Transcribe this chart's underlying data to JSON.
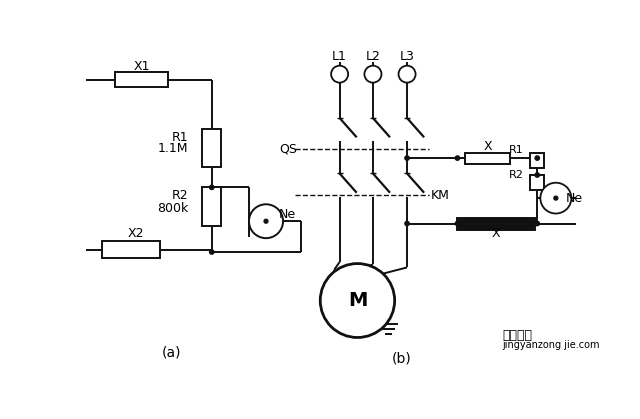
{
  "bg": "white",
  "lc": "#111111",
  "label_a": "(a)",
  "label_b": "(b)",
  "L1x": 335,
  "L2x": 378,
  "L3x": 422,
  "watermark1": "经验总结",
  "watermark2": "jingyanzong jie.com"
}
